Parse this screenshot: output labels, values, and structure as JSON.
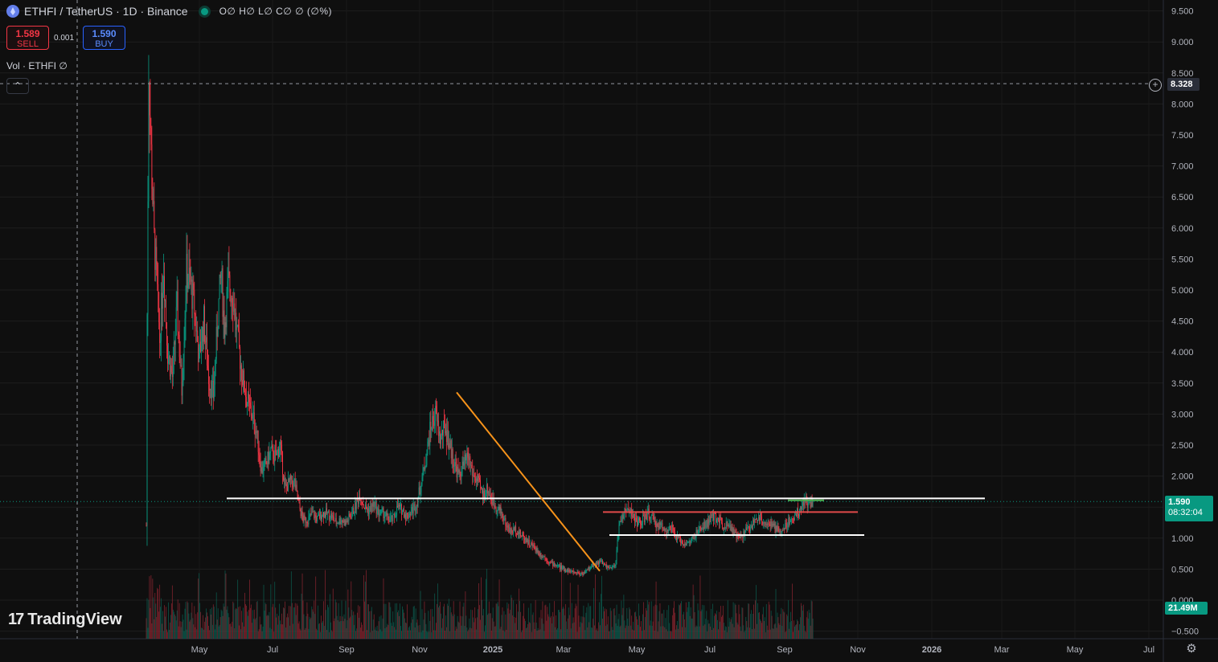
{
  "header": {
    "symbol_title": "ETHFI / TetherUS · 1D · Binance",
    "ohlc": "O∅ H∅ L∅ C∅ ∅ (∅%)"
  },
  "trade": {
    "sell_price": "1.589",
    "sell_label": "SELL",
    "spread": "0.001",
    "buy_price": "1.590",
    "buy_label": "BUY"
  },
  "volume_legend": "Vol · ETHFI  ∅",
  "collapse_glyph": "⌃",
  "crosshair_price": "8.328",
  "last_price": "1.590",
  "countdown": "08:32:04",
  "volume_value": "21.49M",
  "logo_text": "TradingView",
  "logo_mark": "17",
  "colors": {
    "up": "#089981",
    "down": "#f23645",
    "orange": "#f7931a",
    "red_line": "#e04a4a",
    "green_line": "#4caf50"
  },
  "chart_data": {
    "type": "candlestick",
    "price_axis": [
      "9.500",
      "9.000",
      "8.500",
      "8.000",
      "7.500",
      "7.000",
      "6.500",
      "6.000",
      "5.500",
      "5.000",
      "4.500",
      "4.000",
      "3.500",
      "3.000",
      "2.500",
      "2.000",
      "1.500",
      "1.000",
      "0.500",
      "0.000",
      "−0.500"
    ],
    "time_axis": [
      "May",
      "Jul",
      "Sep",
      "Nov",
      "2025",
      "Mar",
      "May",
      "Jul",
      "Sep",
      "Nov",
      "2026",
      "Mar",
      "May",
      "Jul"
    ],
    "ylim": [
      -0.5,
      9.5
    ],
    "close_path": [
      [
        0,
        1.2
      ],
      [
        1,
        4.6
      ],
      [
        3,
        8.6
      ],
      [
        6,
        7.2
      ],
      [
        10,
        5.8
      ],
      [
        13,
        5.2
      ],
      [
        17,
        4.2
      ],
      [
        22,
        5.4
      ],
      [
        27,
        4.0
      ],
      [
        33,
        3.6
      ],
      [
        39,
        4.7
      ],
      [
        45,
        3.4
      ],
      [
        51,
        5.3
      ],
      [
        56,
        5.1
      ],
      [
        61,
        4.7
      ],
      [
        67,
        3.9
      ],
      [
        73,
        4.5
      ],
      [
        79,
        3.6
      ],
      [
        85,
        3.3
      ],
      [
        91,
        4.6
      ],
      [
        95,
        5.3
      ],
      [
        99,
        4.4
      ],
      [
        104,
        5.1
      ],
      [
        110,
        4.9
      ],
      [
        116,
        4.2
      ],
      [
        122,
        3.6
      ],
      [
        128,
        3.2
      ],
      [
        134,
        3.0
      ],
      [
        140,
        2.7
      ],
      [
        146,
        2.1
      ],
      [
        152,
        2.2
      ],
      [
        158,
        2.4
      ],
      [
        164,
        2.3
      ],
      [
        170,
        2.5
      ],
      [
        176,
        1.8
      ],
      [
        182,
        1.9
      ],
      [
        188,
        1.9
      ],
      [
        194,
        1.5
      ],
      [
        199,
        1.3
      ],
      [
        205,
        1.3
      ],
      [
        211,
        1.4
      ],
      [
        217,
        1.3
      ],
      [
        223,
        1.4
      ],
      [
        229,
        1.4
      ],
      [
        235,
        1.35
      ],
      [
        241,
        1.25
      ],
      [
        247,
        1.3
      ],
      [
        253,
        1.25
      ],
      [
        259,
        1.35
      ],
      [
        265,
        1.5
      ],
      [
        271,
        1.7
      ],
      [
        277,
        1.5
      ],
      [
        283,
        1.45
      ],
      [
        289,
        1.55
      ],
      [
        295,
        1.4
      ],
      [
        301,
        1.4
      ],
      [
        307,
        1.3
      ],
      [
        313,
        1.3
      ],
      [
        319,
        1.5
      ],
      [
        325,
        1.45
      ],
      [
        331,
        1.35
      ],
      [
        337,
        1.45
      ],
      [
        343,
        1.55
      ],
      [
        349,
        1.9
      ],
      [
        355,
        2.3
      ],
      [
        361,
        2.8
      ],
      [
        367,
        3.0
      ],
      [
        373,
        2.6
      ],
      [
        379,
        2.8
      ],
      [
        385,
        2.5
      ],
      [
        391,
        2.2
      ],
      [
        397,
        2.0
      ],
      [
        403,
        2.2
      ],
      [
        409,
        2.3
      ],
      [
        415,
        2.0
      ],
      [
        421,
        1.9
      ],
      [
        427,
        1.7
      ],
      [
        433,
        1.8
      ],
      [
        439,
        1.6
      ],
      [
        445,
        1.5
      ],
      [
        451,
        1.4
      ],
      [
        457,
        1.2
      ],
      [
        463,
        1.1
      ],
      [
        469,
        1.15
      ],
      [
        475,
        1.05
      ],
      [
        481,
        1.0
      ],
      [
        487,
        0.9
      ],
      [
        493,
        0.85
      ],
      [
        499,
        0.75
      ],
      [
        505,
        0.7
      ],
      [
        511,
        0.62
      ],
      [
        517,
        0.58
      ],
      [
        523,
        0.55
      ],
      [
        529,
        0.5
      ],
      [
        535,
        0.48
      ],
      [
        541,
        0.45
      ],
      [
        547,
        0.44
      ],
      [
        553,
        0.43
      ],
      [
        559,
        0.47
      ],
      [
        565,
        0.55
      ],
      [
        571,
        0.6
      ],
      [
        577,
        0.62
      ],
      [
        583,
        0.55
      ],
      [
        589,
        0.5
      ],
      [
        595,
        0.55
      ],
      [
        601,
        1.3
      ],
      [
        607,
        1.4
      ],
      [
        613,
        1.5
      ],
      [
        619,
        1.3
      ],
      [
        625,
        1.25
      ],
      [
        631,
        1.3
      ],
      [
        637,
        1.4
      ],
      [
        643,
        1.3
      ],
      [
        649,
        1.2
      ],
      [
        655,
        1.2
      ],
      [
        661,
        1.1
      ],
      [
        667,
        1.15
      ],
      [
        673,
        1.0
      ],
      [
        679,
        0.95
      ],
      [
        685,
        0.9
      ],
      [
        691,
        0.95
      ],
      [
        697,
        1.05
      ],
      [
        703,
        1.15
      ],
      [
        709,
        1.2
      ],
      [
        715,
        1.3
      ],
      [
        721,
        1.35
      ],
      [
        727,
        1.3
      ],
      [
        733,
        1.2
      ],
      [
        739,
        1.25
      ],
      [
        745,
        1.1
      ],
      [
        751,
        1.0
      ],
      [
        757,
        1.05
      ],
      [
        763,
        1.15
      ],
      [
        769,
        1.2
      ],
      [
        775,
        1.35
      ],
      [
        781,
        1.3
      ],
      [
        787,
        1.25
      ],
      [
        793,
        1.2
      ],
      [
        799,
        1.15
      ],
      [
        805,
        1.1
      ],
      [
        811,
        1.2
      ],
      [
        817,
        1.3
      ],
      [
        823,
        1.35
      ],
      [
        829,
        1.45
      ],
      [
        835,
        1.6
      ],
      [
        841,
        1.55
      ],
      [
        846,
        1.59
      ]
    ],
    "horizontal_lines": [
      {
        "price": 1.64,
        "x_from": 282,
        "x_to": 1225,
        "color": "#ffffff"
      },
      {
        "price": 1.05,
        "x_from": 758,
        "x_to": 1075,
        "color": "#ffffff"
      },
      {
        "price": 1.42,
        "x_from": 750,
        "x_to": 1067,
        "color": "#e04a4a"
      },
      {
        "price": 1.61,
        "x_from": 980,
        "x_to": 1025,
        "color": "#4caf50"
      }
    ],
    "trendline": {
      "from_price": 3.35,
      "to_price": 0.47,
      "color": "#f7931a"
    }
  }
}
